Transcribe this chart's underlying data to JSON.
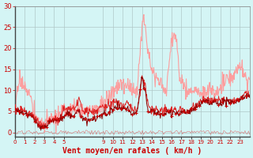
{
  "xlabel": "Vent moyen/en rafales ( km/h )",
  "xlabel_color": "#cc0000",
  "background_color": "#d4f5f5",
  "grid_color": "#b0c8c8",
  "ylim": [
    -1,
    30
  ],
  "yticks": [
    0,
    5,
    10,
    15,
    20,
    25,
    30
  ],
  "line_gust_color": "#ff9999",
  "line_avg_color": "#dd2222",
  "line_avg2_color": "#880000",
  "marker_color": "#cc0000",
  "seed": 17,
  "t_gust": [
    0,
    0.5,
    1.0,
    1.5,
    2.0,
    2.5,
    3.0,
    3.5,
    4.0,
    4.5,
    5.0,
    5.5,
    6.0,
    6.5,
    7.0,
    7.5,
    8.0,
    8.5,
    9.0,
    9.5,
    10.0,
    10.5,
    11.0,
    11.5,
    12.0,
    12.5,
    13.0,
    13.2,
    13.4,
    13.6,
    13.8,
    14.0,
    14.2,
    14.5,
    15.0,
    15.5,
    16.0,
    16.2,
    16.4,
    16.6,
    16.8,
    17.0,
    17.5,
    18.0,
    18.5,
    19.0,
    19.5,
    20.0,
    20.5,
    21.0,
    21.5,
    22.0,
    22.5,
    23.0,
    23.5,
    24.0
  ],
  "v_gust": [
    5.5,
    13.0,
    11.0,
    9.0,
    4.0,
    2.0,
    2.5,
    3.0,
    3.0,
    3.5,
    5.0,
    5.5,
    5.5,
    5.5,
    5.0,
    5.0,
    5.5,
    6.0,
    7.0,
    8.0,
    9.5,
    11.0,
    11.5,
    11.0,
    10.0,
    10.5,
    25.0,
    27.5,
    24.0,
    20.0,
    18.0,
    15.0,
    14.0,
    13.0,
    11.0,
    10.0,
    22.0,
    23.0,
    22.5,
    21.0,
    13.0,
    13.0,
    10.0,
    10.0,
    9.5,
    9.0,
    9.5,
    10.0,
    9.5,
    10.5,
    12.0,
    12.5,
    14.0,
    16.0,
    13.0,
    12.0
  ],
  "t_avg": [
    0,
    0.5,
    1.0,
    1.5,
    2.0,
    2.5,
    3.0,
    3.5,
    4.0,
    4.5,
    5.0,
    5.5,
    6.0,
    6.5,
    7.0,
    7.5,
    8.0,
    8.5,
    9.0,
    9.5,
    10.0,
    10.5,
    11.0,
    11.5,
    12.0,
    12.5,
    13.0,
    13.3,
    13.6,
    14.0,
    14.5,
    15.0,
    15.5,
    16.0,
    16.3,
    16.6,
    17.0,
    17.5,
    18.0,
    18.5,
    19.0,
    19.5,
    20.0,
    20.5,
    21.0,
    21.5,
    22.0,
    22.5,
    23.0,
    23.5,
    24.0
  ],
  "v_avg": [
    5.5,
    5.5,
    5.0,
    4.5,
    3.5,
    2.0,
    1.5,
    2.5,
    3.0,
    3.0,
    5.5,
    5.5,
    5.5,
    7.5,
    5.0,
    5.0,
    5.0,
    5.5,
    6.0,
    6.0,
    7.0,
    7.5,
    6.5,
    7.0,
    5.5,
    5.5,
    13.0,
    11.0,
    6.5,
    5.5,
    5.5,
    5.0,
    5.5,
    5.0,
    5.5,
    5.0,
    5.5,
    5.0,
    5.5,
    6.5,
    7.5,
    8.0,
    7.5,
    7.5,
    7.5,
    8.0,
    7.5,
    7.5,
    8.0,
    9.0,
    9.0
  ],
  "t_avg2": [
    0,
    0.5,
    1.0,
    1.5,
    2.0,
    2.5,
    3.0,
    3.5,
    4.0,
    4.5,
    5.0,
    5.5,
    6.0,
    6.5,
    7.0,
    7.5,
    8.0,
    8.5,
    9.0,
    9.5,
    10.0,
    10.5,
    11.0,
    11.5,
    12.0,
    12.5,
    13.0,
    13.3,
    13.6,
    14.0,
    14.5,
    15.0,
    15.5,
    16.0,
    16.3,
    16.6,
    17.0,
    17.5,
    18.0,
    18.5,
    19.0,
    19.5,
    20.0,
    20.5,
    21.0,
    21.5,
    22.0,
    22.5,
    23.0,
    23.5,
    24.0
  ],
  "v_avg2": [
    5.5,
    5.0,
    4.5,
    4.0,
    3.0,
    1.5,
    1.0,
    2.5,
    3.0,
    3.0,
    3.5,
    4.5,
    4.0,
    5.0,
    3.0,
    3.0,
    3.5,
    3.5,
    4.0,
    4.5,
    5.5,
    6.0,
    5.5,
    5.5,
    4.5,
    5.0,
    13.5,
    9.5,
    5.0,
    5.0,
    4.5,
    4.0,
    5.0,
    4.5,
    5.0,
    4.0,
    5.0,
    4.5,
    5.0,
    6.0,
    7.0,
    7.5,
    7.0,
    7.0,
    7.0,
    7.5,
    7.0,
    7.0,
    7.5,
    8.5,
    8.5
  ],
  "xtick_positions": [
    0,
    1,
    2,
    3,
    4,
    5,
    9,
    10,
    11,
    12,
    13,
    14,
    15,
    16,
    17,
    18,
    19,
    20,
    21,
    22,
    23
  ],
  "xtick_labels": [
    "0",
    "1",
    "2",
    "3",
    "4",
    "5",
    "9",
    "10",
    "11",
    "12",
    "13",
    "14",
    "15",
    "16",
    "17",
    "18",
    "19",
    "20",
    "21",
    "22",
    "23"
  ]
}
